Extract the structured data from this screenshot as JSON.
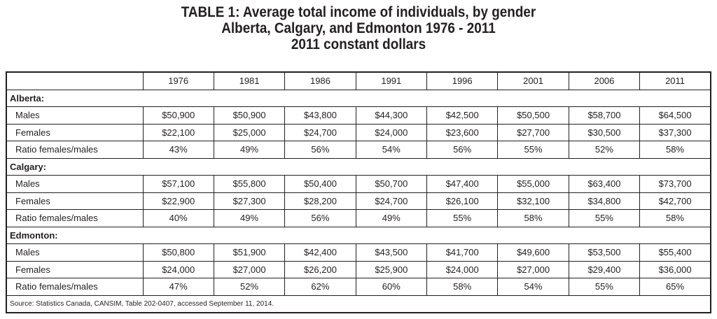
{
  "title": {
    "line1": "TABLE 1: Average total income of individuals, by gender",
    "line2": "Alberta, Calgary, and Edmonton 1976 - 2011",
    "line3": "2011 constant dollars"
  },
  "table": {
    "years": [
      "1976",
      "1981",
      "1986",
      "1991",
      "1996",
      "2001",
      "2006",
      "2011"
    ],
    "sections": [
      {
        "name": "Alberta:",
        "rows": [
          {
            "label": "Males",
            "values": [
              "$50,900",
              "$50,900",
              "$43,800",
              "$44,300",
              "$42,500",
              "$50,500",
              "$58,700",
              "$64,500"
            ]
          },
          {
            "label": "Females",
            "values": [
              "$22,100",
              "$25,000",
              "$24,700",
              "$24,000",
              "$23,600",
              "$27,700",
              "$30,500",
              "$37,300"
            ]
          },
          {
            "label": "Ratio females/males",
            "values": [
              "43%",
              "49%",
              "56%",
              "54%",
              "56%",
              "55%",
              "52%",
              "58%"
            ]
          }
        ]
      },
      {
        "name": "Calgary:",
        "rows": [
          {
            "label": "Males",
            "values": [
              "$57,100",
              "$55,800",
              "$50,400",
              "$50,700",
              "$47,400",
              "$55,000",
              "$63,400",
              "$73,700"
            ]
          },
          {
            "label": "Females",
            "values": [
              "$22,900",
              "$27,300",
              "$28,200",
              "$24,700",
              "$26,100",
              "$32,100",
              "$34,800",
              "$42,700"
            ]
          },
          {
            "label": "Ratio females/males",
            "values": [
              "40%",
              "49%",
              "56%",
              "49%",
              "55%",
              "58%",
              "55%",
              "58%"
            ]
          }
        ]
      },
      {
        "name": "Edmonton:",
        "rows": [
          {
            "label": "Males",
            "values": [
              "$50,800",
              "$51,900",
              "$42,400",
              "$43,500",
              "$41,700",
              "$49,600",
              "$53,500",
              "$55,400"
            ]
          },
          {
            "label": "Females",
            "values": [
              "$24,000",
              "$27,000",
              "$26,200",
              "$25,900",
              "$24,000",
              "$27,000",
              "$29,400",
              "$36,000"
            ]
          },
          {
            "label": "Ratio females/males",
            "values": [
              "47%",
              "52%",
              "62%",
              "60%",
              "58%",
              "54%",
              "55%",
              "65%"
            ]
          }
        ]
      }
    ],
    "source": "Source: Statistics Canada, CANSIM, Table 202-0407, accessed September 11, 2014."
  }
}
